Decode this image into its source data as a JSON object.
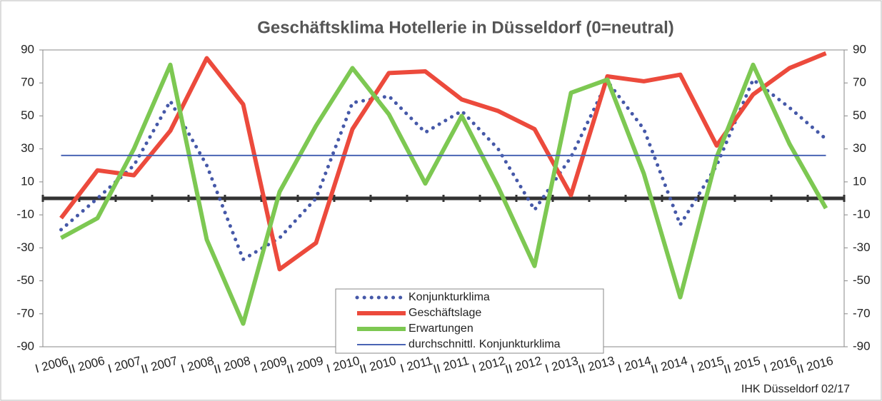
{
  "chart_data": {
    "type": "line",
    "title": "Geschäftsklima Hotellerie in Düsseldorf (0=neutral)",
    "source": "IHK Düsseldorf 02/17",
    "categories": [
      "I 2006",
      "II 2006",
      "I 2007",
      "II 2007",
      "I 2008",
      "II 2008",
      "I 2009",
      "II 2009",
      "I 2010",
      "II 2010",
      "I 2011",
      "II 2011",
      "I 2012",
      "II 2012",
      "I 2013",
      "II 2013",
      "I 2014",
      "II 2014",
      "I 2015",
      "II 2015",
      "I 2016",
      "II 2016"
    ],
    "series": [
      {
        "name": "Konjunkturklima",
        "color": "#4558a8",
        "style": "dotted",
        "values": [
          -19,
          0,
          20,
          59,
          20,
          -37,
          -24,
          0,
          58,
          62,
          40,
          53,
          30,
          -7,
          25,
          71,
          42,
          -16,
          20,
          72,
          55,
          36
        ]
      },
      {
        "name": "Geschäftslage",
        "color": "#ec4a3c",
        "style": "solid",
        "values": [
          -12,
          17,
          14,
          41,
          85,
          57,
          -43,
          -27,
          42,
          76,
          77,
          60,
          53,
          42,
          2,
          74,
          71,
          75,
          32,
          63,
          79,
          88
        ]
      },
      {
        "name": "Erwartungen",
        "color": "#7dc852",
        "style": "solid",
        "values": [
          -24,
          -12,
          30,
          81,
          -25,
          -76,
          4,
          44,
          79,
          51,
          9,
          50,
          7,
          -41,
          64,
          72,
          15,
          -60,
          25,
          81,
          33,
          -6
        ]
      },
      {
        "name": "durchschnittl. Konjunkturklima",
        "color": "#4a64b4",
        "style": "thin",
        "values": [
          26,
          26,
          26,
          26,
          26,
          26,
          26,
          26,
          26,
          26,
          26,
          26,
          26,
          26,
          26,
          26,
          26,
          26,
          26,
          26,
          26,
          26
        ]
      }
    ],
    "ylim": [
      -90,
      90
    ],
    "yticks": [
      -90,
      -70,
      -50,
      -30,
      -10,
      10,
      30,
      50,
      70,
      90
    ],
    "y2lim": [
      -90,
      90
    ],
    "y2ticks": [
      -90,
      -70,
      -50,
      -30,
      -10,
      10,
      30,
      50,
      70,
      90
    ],
    "legend": "bottom-center"
  }
}
